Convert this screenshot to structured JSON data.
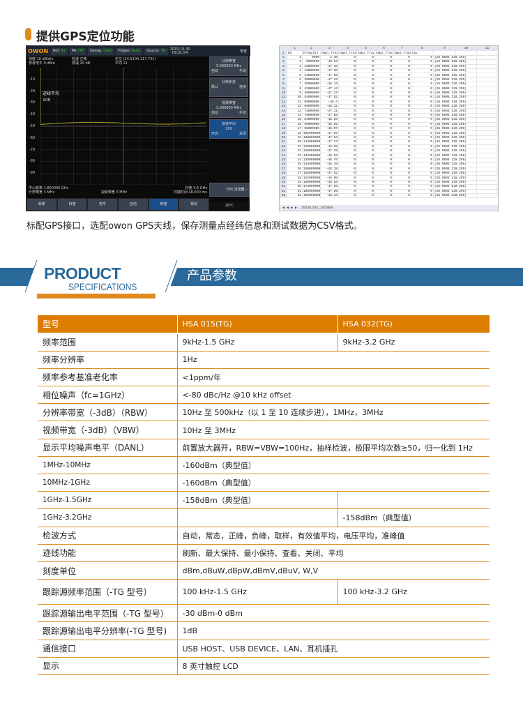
{
  "gps_section": {
    "title": "提供GPS定位功能",
    "caption": "标配GPS接口，选配owon GPS天线，保存测量点经纬信息和测试数据为CSV格式。"
  },
  "analyzer": {
    "logo": "OWON",
    "topbar": [
      {
        "label": "Ref:",
        "value": "Int"
      },
      {
        "label": "PA:",
        "value": "Off"
      },
      {
        "label": "Sweep:",
        "value": "Cont"
      },
      {
        "label": "Trigger:",
        "value": "Auto"
      },
      {
        "label": "Source:",
        "value": "TG"
      }
    ],
    "date": "2019-10-30",
    "time": "09:31:54",
    "menu_title": "带宽",
    "info": [
      "刻度 10 dB/div",
      "检波 正峰",
      "定位 (24.5104,117.731)",
      "参考电平 0 dBm",
      "衰减 20 dB",
      "平均 21"
    ],
    "y_ticks": [
      "-10",
      "-20",
      "-30",
      "-40",
      "-50",
      "-60",
      "-70",
      "-80",
      "-90"
    ],
    "overlay": {
      "label": "迹线平均",
      "value": "100"
    },
    "bottom_info": {
      "center": "中心频率 1.800000 GHz",
      "rbw": "分辨带宽 3 MHz",
      "vbw": "视频带宽 3 MHz",
      "span": "扫宽 3.6 GHz",
      "sweep": "扫描时间 48.000 ms"
    },
    "right_menu": [
      {
        "title": "分辨带宽",
        "value": "3.000000 MHz",
        "left": "自动",
        "right": "手动"
      },
      {
        "title": "分辨步进",
        "value": "",
        "left": "默认",
        "right": "连续"
      },
      {
        "title": "视频带宽",
        "value": "3.000000 MHz",
        "left": "自动",
        "right": "手动"
      },
      {
        "title": "迹线平均",
        "value": "100",
        "left": "开启",
        "right": "关闭",
        "active": true
      }
    ],
    "emi": "EMI 滤波器 ›",
    "status": "29°C",
    "bottom_tabs": [
      {
        "label": "频率"
      },
      {
        "label": "扫宽"
      },
      {
        "label": "电平"
      },
      {
        "label": "自动"
      },
      {
        "label": "带宽",
        "active": true
      },
      {
        "label": "频标"
      }
    ],
    "trace_color": "#c8c020"
  },
  "spreadsheet": {
    "col_headers": [
      "",
      "1",
      "2",
      "3",
      "4",
      "5",
      "6",
      "7",
      "8",
      "9",
      "10",
      "11"
    ],
    "header_row": [
      "No",
      "Freq(Hz)",
      "Ampt_Trac",
      "Ampt_Trac",
      "Ampt_Trac",
      "Ampt_Trac",
      "Ampt_Trac",
      "Loc"
    ],
    "rows": [
      [
        "1",
        "9000",
        "2.30"
      ],
      [
        "2",
        "6009000",
        "-48.54"
      ],
      [
        "3",
        "12009000",
        "-47.46"
      ],
      [
        "4",
        "18009000",
        "-47.68"
      ],
      [
        "5",
        "24009000",
        "-47.85"
      ],
      [
        "6",
        "30009000",
        "-47.33"
      ],
      [
        "7",
        "36009000",
        "-46.13"
      ],
      [
        "8",
        "42009000",
        "-47.44"
      ],
      [
        "9",
        "48009000",
        "-47.27"
      ],
      [
        "10",
        "54009000",
        "-47.52"
      ],
      [
        "11",
        "60009000",
        "-48.3"
      ],
      [
        "12",
        "66009000",
        "-48.12"
      ],
      [
        "13",
        "72009000",
        "-47.11"
      ],
      [
        "14",
        "78009000",
        "-47.55"
      ],
      [
        "15",
        "84009000",
        "-48.26"
      ],
      [
        "16",
        "90009000",
        "-46.62"
      ],
      [
        "17",
        "96009000",
        "-48.97"
      ],
      [
        "18",
        "102009000",
        "-47.66"
      ],
      [
        "19",
        "108009000",
        "-47.94"
      ],
      [
        "20",
        "114009000",
        "-47.13"
      ],
      [
        "21",
        "120009000",
        "-46.56"
      ],
      [
        "22",
        "126009000",
        "-47.78"
      ],
      [
        "23",
        "132009000",
        "-46.83"
      ],
      [
        "24",
        "138009000",
        "-46.76"
      ],
      [
        "25",
        "144009000",
        "-46.19"
      ],
      [
        "26",
        "150009000",
        "-48.18"
      ],
      [
        "27",
        "156009000",
        "-47.92"
      ],
      [
        "28",
        "162009000",
        "-48.05"
      ],
      [
        "29",
        "168009000",
        "-48.83"
      ],
      [
        "30",
        "174009000",
        "-47.63"
      ],
      [
        "31",
        "180009000",
        "-47.99"
      ],
      [
        "32",
        "186009000",
        "-48.13"
      ]
    ],
    "zero": "0",
    "loc": "(26.0506 119.299)",
    "sheet_tab": "20191203_165808"
  },
  "specs": {
    "banner_en_1": "PRODUCT",
    "banner_en_2": "SPECIFICATIONS",
    "banner_cn": "产品参数",
    "header": [
      "型号",
      "HSA 015(TG)",
      "HSA 032(TG)"
    ],
    "rows": [
      {
        "label": "频率范围",
        "a": "9kHz-1.5 GHz",
        "b": "9kHz-3.2 GHz"
      },
      {
        "label": "频率分辨率",
        "span": "1Hz"
      },
      {
        "label": "频率参考基准老化率",
        "span": "<1ppm/年"
      },
      {
        "label": "相位噪声（fc=1GHz）",
        "span": "<-80 dBc/Hz @10 kHz offset"
      },
      {
        "label": "分辨率带宽（-3dB）（RBW）",
        "span": "10Hz 至 500kHz（以 1 至 10 连续步进），1MHz，3MHz"
      },
      {
        "label": "视频带宽（-3dB）（VBW）",
        "span": "10Hz 至 3MHz"
      },
      {
        "label": "显示平均噪声电平（DANL）",
        "span": "前置放大器开，RBW=VBW=100Hz，抽样检波，极限平均次数≥50，归一化到 1Hz"
      },
      {
        "label": "1MHz-10MHz",
        "span": "-160dBm（典型值）",
        "small": true
      },
      {
        "label": "10MHz-1GHz",
        "span": "-160dBm（典型值）",
        "small": true
      },
      {
        "label": "1GHz-1.5GHz",
        "a": "-158dBm（典型值）",
        "b": "",
        "small": true
      },
      {
        "label": "1GHz-3.2GHz",
        "a": "",
        "b": "-158dBm（典型值）",
        "small": true
      },
      {
        "label": "检波方式",
        "span": "自动，常态，正峰，负峰，取样，有效值平均，电压平均，准峰值"
      },
      {
        "label": "迹线功能",
        "span": "刷新、最大保持、最小保持、查看、关闭、平均"
      },
      {
        "label": "刻度单位",
        "span": "dBm,dBuW,dBpW,dBmV,dBuV, W,V"
      },
      {
        "label": "跟踪源频率范围（-TG 型号）",
        "a": "100 kHz-1.5 GHz",
        "b": "100 kHz-3.2 GHz",
        "tall": true
      },
      {
        "label": "跟踪源输出电平范围（-TG 型号）",
        "span": "-30 dBm-0 dBm"
      },
      {
        "label": "跟踪源输出电平分辨率(-TG 型号)",
        "span": "1dB"
      },
      {
        "label": "通信接口",
        "span": "USB HOST、USB DEVICE、LAN、耳机插孔"
      },
      {
        "label": "显示",
        "span": "8 英寸触控 LCD"
      }
    ],
    "accent": "#dd7d00",
    "banner_color": "#2a6a9a"
  }
}
